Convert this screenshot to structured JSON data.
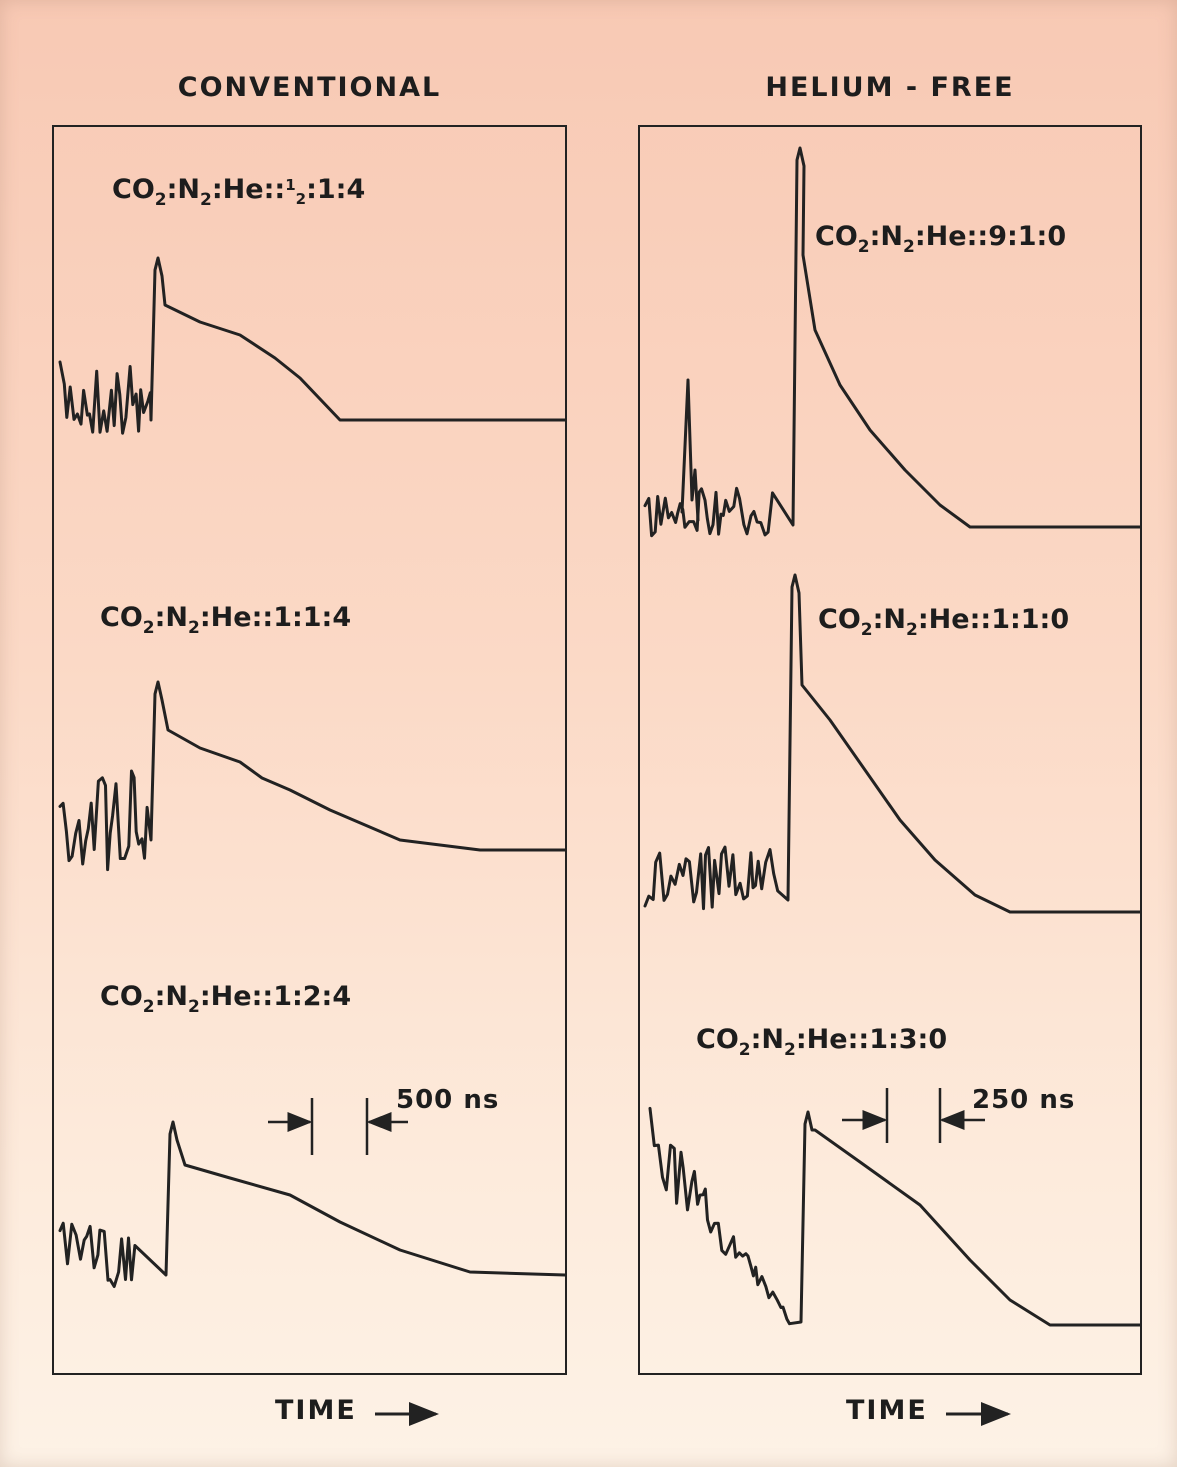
{
  "columns": {
    "left": {
      "title": "CONVENTIONAL",
      "xlabel": "TIME",
      "scale_label": "500 ns"
    },
    "right": {
      "title": "HELIUM - FREE",
      "xlabel": "TIME",
      "scale_label": "250 ns"
    }
  },
  "colors": {
    "ink": "#222222",
    "background": "#fbd9c6"
  },
  "chart_data": [
    {
      "type": "line",
      "title": "CONVENTIONAL",
      "xlabel": "TIME",
      "ylabel": "",
      "series": [
        {
          "name": "CO2:N2:He::½:1:4",
          "label_main": "CO",
          "sub1": "2",
          "mid": ":N",
          "sub2": "2",
          "tail": ":He::",
          "frac": "1/2",
          "ratio": ":1:4",
          "peak": 1.0,
          "tail_level": 0.0
        },
        {
          "name": "CO2:N2:He::1:1:4",
          "label_main": "CO",
          "sub1": "2",
          "mid": ":N",
          "sub2": "2",
          "tail": ":He::",
          "frac": "",
          "ratio": "1:1:4",
          "peak": 1.0,
          "tail_level": 0.0
        },
        {
          "name": "CO2:N2:He::1:2:4",
          "label_main": "CO",
          "sub1": "2",
          "mid": ":N",
          "sub2": "2",
          "tail": ":He::",
          "frac": "",
          "ratio": "1:2:4",
          "peak": 1.0,
          "tail_level": 0.0
        }
      ]
    },
    {
      "type": "line",
      "title": "HELIUM - FREE",
      "xlabel": "TIME",
      "ylabel": "",
      "series": [
        {
          "name": "CO2:N2:He::9:1:0",
          "label_main": "CO",
          "sub1": "2",
          "mid": ":N",
          "sub2": "2",
          "tail": ":He::",
          "frac": "",
          "ratio": "9:1:0",
          "peak": 1.0,
          "tail_level": 0.0
        },
        {
          "name": "CO2:N2:He::1:1:0",
          "label_main": "CO",
          "sub1": "2",
          "mid": ":N",
          "sub2": "2",
          "tail": ":He::",
          "frac": "",
          "ratio": "1:1:0",
          "peak": 1.0,
          "tail_level": 0.0
        },
        {
          "name": "CO2:N2:He::1:3:0",
          "label_main": "CO",
          "sub1": "2",
          "mid": ":N",
          "sub2": "2",
          "tail": ":He::",
          "frac": "",
          "ratio": "1:3:0",
          "peak": 1.0,
          "tail_level": 0.0
        }
      ]
    }
  ]
}
